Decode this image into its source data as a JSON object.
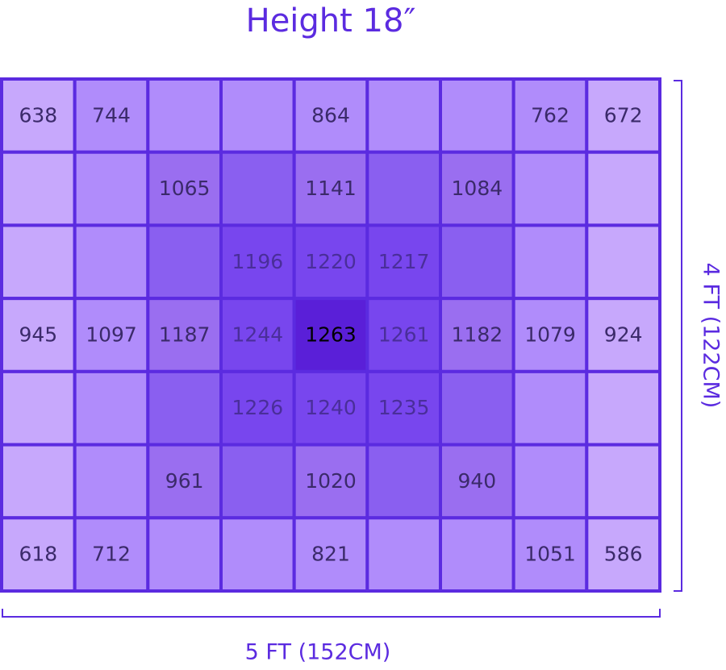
{
  "title": "Height 18″",
  "grid": {
    "rows": [
      [
        638,
        744,
        null,
        null,
        864,
        null,
        null,
        762,
        672
      ],
      [
        null,
        null,
        1065,
        null,
        1141,
        null,
        1084,
        null,
        null
      ],
      [
        null,
        null,
        null,
        1196,
        1220,
        1217,
        null,
        null,
        null
      ],
      [
        945,
        1097,
        1187,
        1244,
        1263,
        1261,
        1182,
        1079,
        924
      ],
      [
        null,
        null,
        null,
        1226,
        1240,
        1235,
        null,
        null,
        null
      ],
      [
        null,
        null,
        961,
        null,
        1020,
        null,
        940,
        null,
        null
      ],
      [
        618,
        712,
        null,
        null,
        821,
        null,
        null,
        1051,
        586
      ]
    ]
  },
  "depth_label": "4 FT (122CM)",
  "width_label": "5 FT (152CM)"
}
